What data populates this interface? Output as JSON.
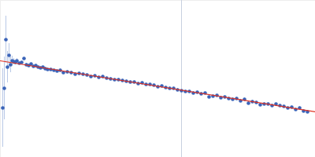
{
  "chart_data": {
    "type": "scatter",
    "tick_labels": false,
    "grid": false,
    "xlim": [
      0,
      400
    ],
    "ylim": [
      0,
      200
    ],
    "xticks": [],
    "yticks": [],
    "series": [
      {
        "type": "scatter",
        "color": "#3a63b8",
        "marker": "circle",
        "x": [
          3,
          5,
          7,
          9,
          11,
          13,
          15,
          17,
          19,
          21,
          24,
          27,
          30,
          33,
          36,
          39,
          42,
          45,
          48,
          51,
          54,
          57,
          60,
          64,
          68,
          72,
          76,
          80,
          85,
          90,
          95,
          100,
          105,
          110,
          115,
          120,
          125,
          130,
          135,
          140,
          145,
          150,
          155,
          160,
          165,
          170,
          175,
          180,
          185,
          190,
          195,
          200,
          205,
          210,
          215,
          220,
          225,
          230,
          235,
          240,
          245,
          250,
          255,
          260,
          265,
          270,
          275,
          280,
          285,
          290,
          295,
          300,
          305,
          310,
          315,
          320,
          325,
          330,
          335,
          340,
          345,
          350,
          355,
          360,
          365,
          370,
          375,
          380,
          385,
          390
        ],
        "values": [
          63,
          88,
          150,
          115,
          130,
          118,
          123,
          122,
          121,
          123,
          120,
          121,
          126,
          118,
          117,
          119,
          116,
          117,
          115,
          114,
          115,
          113,
          112,
          112,
          111,
          110,
          111,
          108,
          109,
          108,
          106,
          107,
          106,
          105,
          103,
          104,
          102,
          103,
          101,
          100,
          99,
          99,
          98,
          97,
          96,
          96,
          94,
          95,
          93,
          93,
          92,
          90,
          91,
          89,
          88,
          88,
          86,
          85,
          84,
          84,
          82,
          83,
          81,
          82,
          77,
          78,
          79,
          76,
          77,
          75,
          74,
          75,
          72,
          74,
          69,
          71,
          70,
          67,
          68,
          68,
          66,
          68,
          66,
          65,
          63,
          64,
          61,
          63,
          59,
          58
        ],
        "errors": [
          50,
          40,
          30,
          20,
          15,
          10,
          6,
          4,
          3,
          3,
          2,
          2,
          2,
          2,
          2,
          2,
          2,
          2,
          2,
          2,
          2,
          2,
          2,
          2,
          2,
          2,
          2,
          2,
          2,
          2,
          2,
          2,
          2,
          2,
          2,
          2,
          2,
          2,
          2,
          2,
          2,
          2,
          2,
          2,
          2,
          2,
          2,
          2,
          2,
          2,
          2,
          2,
          2,
          2,
          2,
          2,
          2,
          2,
          2,
          2,
          2,
          2,
          2,
          2,
          2,
          2,
          2,
          2,
          2,
          2,
          2,
          2,
          2,
          2,
          2,
          2,
          2,
          2,
          2,
          2,
          2,
          2,
          2,
          2,
          2,
          2,
          2,
          2,
          2,
          2
        ],
        "error_color": "#b8c8e6"
      },
      {
        "type": "line",
        "color": "#e03020",
        "line_style": "solid",
        "x": [
          0,
          400
        ],
        "values": [
          123,
          58
        ]
      }
    ],
    "vline": {
      "x": 230,
      "color": "#c8d0e0"
    }
  }
}
